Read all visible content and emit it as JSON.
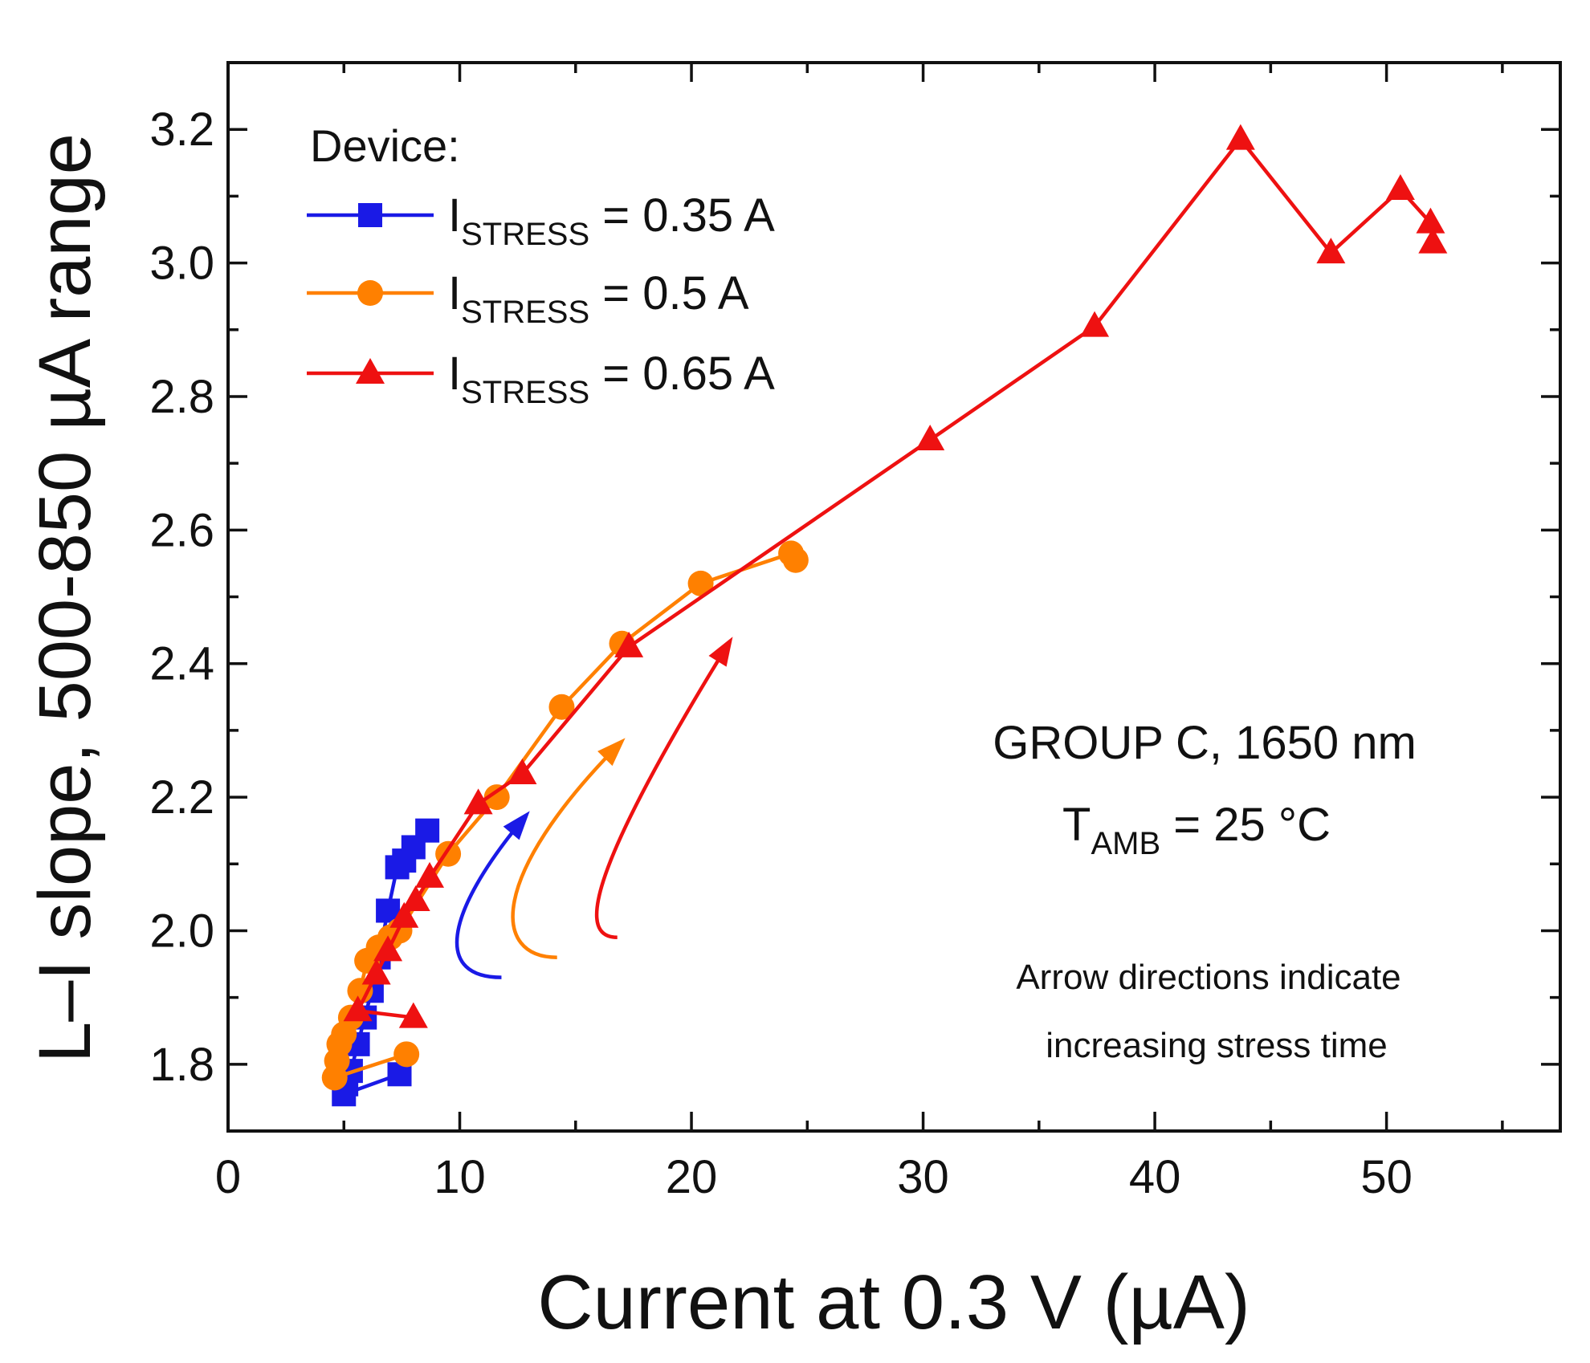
{
  "chart_data": {
    "type": "line",
    "title": "",
    "xlabel": "Current at 0.3 V (µA)",
    "ylabel": "L–I slope,  500-850 µA range",
    "xlim": [
      0,
      57.5
    ],
    "ylim": [
      1.7,
      3.3
    ],
    "x_major_ticks": [
      0,
      10,
      20,
      30,
      40,
      50
    ],
    "x_tick_labels": [
      "0",
      "10",
      "20",
      "30",
      "40",
      "50"
    ],
    "x_minor_ticks": [
      5,
      15,
      25,
      35,
      45,
      55
    ],
    "y_major_ticks": [
      1.8,
      2.0,
      2.2,
      2.4,
      2.6,
      2.8,
      3.0,
      3.2
    ],
    "y_tick_labels": [
      "1.8",
      "2.0",
      "2.2",
      "2.4",
      "2.6",
      "2.8",
      "3.0",
      "3.2"
    ],
    "y_minor_ticks": [
      1.7,
      1.9,
      2.1,
      2.3,
      2.5,
      2.7,
      2.9,
      3.1,
      3.3
    ],
    "grid": false,
    "legend": {
      "title": "Device:",
      "position": "top-left",
      "entries": [
        {
          "main": "I",
          "sub": "STRESS",
          "rest": " = 0.35 A"
        },
        {
          "main": "I",
          "sub": "STRESS",
          "rest": " = 0.5 A"
        },
        {
          "main": "I",
          "sub": "STRESS",
          "rest": " = 0.65 A"
        }
      ]
    },
    "series": [
      {
        "name": "I_STRESS = 0.35 A",
        "color": "#1a1ae6",
        "marker": "square",
        "x": [
          7.4,
          5.0,
          5.1,
          5.3,
          5.6,
          5.9,
          6.2,
          6.5,
          6.9,
          7.3,
          7.6,
          8.0,
          8.6
        ],
        "y": [
          1.785,
          1.755,
          1.77,
          1.79,
          1.83,
          1.87,
          1.91,
          1.96,
          2.03,
          2.095,
          2.105,
          2.125,
          2.15
        ]
      },
      {
        "name": "I_STRESS = 0.5 A",
        "color": "#ff8000",
        "marker": "circle",
        "x": [
          7.7,
          4.6,
          4.7,
          4.8,
          5.0,
          5.3,
          5.7,
          6.0,
          6.5,
          7.0,
          7.4,
          9.5,
          11.6,
          14.4,
          17.0,
          20.4,
          24.3,
          24.5
        ],
        "y": [
          1.815,
          1.78,
          1.805,
          1.83,
          1.845,
          1.87,
          1.91,
          1.955,
          1.975,
          1.99,
          2.0,
          2.115,
          2.2,
          2.335,
          2.43,
          2.52,
          2.565,
          2.555
        ]
      },
      {
        "name": "I_STRESS = 0.65 A",
        "color": "#ee1111",
        "marker": "triangle",
        "x": [
          8.0,
          5.6,
          6.4,
          6.9,
          7.6,
          8.1,
          8.7,
          10.8,
          12.7,
          17.3,
          30.3,
          37.4,
          43.7,
          47.6,
          50.6,
          51.9,
          52.0
        ],
        "y": [
          1.87,
          1.88,
          1.935,
          1.97,
          2.02,
          2.045,
          2.08,
          2.19,
          2.235,
          2.425,
          2.735,
          2.905,
          3.185,
          3.015,
          3.11,
          3.06,
          3.03
        ]
      }
    ],
    "arrows": [
      {
        "color": "#1a1ae6",
        "path": [
          [
            11.8,
            1.93
          ],
          [
            9.0,
            1.93
          ],
          [
            9.2,
            2.02
          ],
          [
            12.8,
            2.17
          ]
        ]
      },
      {
        "color": "#ff8000",
        "path": [
          [
            14.2,
            1.96
          ],
          [
            11.4,
            1.96
          ],
          [
            11.2,
            2.08
          ],
          [
            16.9,
            2.28
          ]
        ]
      },
      {
        "color": "#ee1111",
        "path": [
          [
            16.8,
            1.99
          ],
          [
            15.2,
            1.99
          ],
          [
            15.2,
            2.07
          ],
          [
            21.6,
            2.43
          ]
        ]
      }
    ],
    "annotations": [
      {
        "id": "group",
        "text": "GROUP C, 1650 nm"
      },
      {
        "id": "tamb",
        "main": "T",
        "sub": "AMB",
        "rest": " = 25 °C"
      },
      {
        "id": "note1",
        "text": "Arrow directions indicate"
      },
      {
        "id": "note2",
        "text": "increasing stress time"
      }
    ]
  }
}
